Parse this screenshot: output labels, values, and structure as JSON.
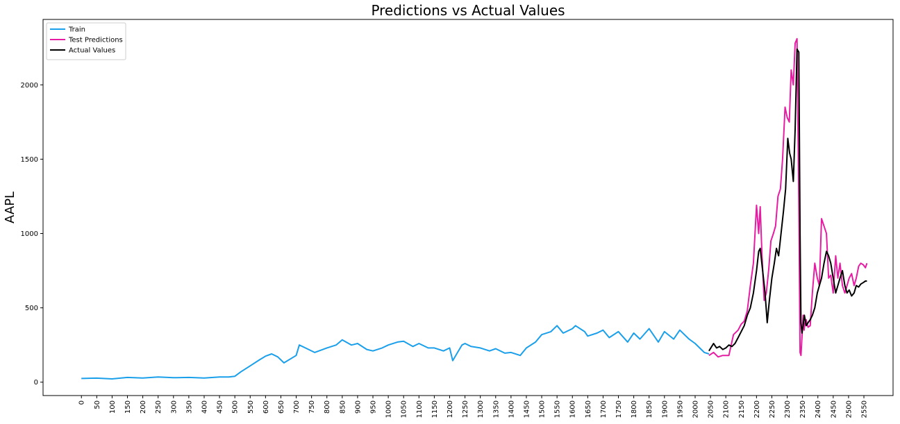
{
  "chart_data": {
    "type": "line",
    "title": "Predictions vs Actual Values",
    "xlabel": "",
    "ylabel": "AAPL",
    "xlim": [
      -125,
      2645
    ],
    "ylim": [
      -90,
      2440
    ],
    "x_ticks": [
      0,
      50,
      100,
      150,
      200,
      250,
      300,
      350,
      400,
      450,
      500,
      550,
      600,
      650,
      700,
      750,
      800,
      850,
      900,
      950,
      1000,
      1050,
      1100,
      1150,
      1200,
      1250,
      1300,
      1350,
      1400,
      1450,
      1500,
      1550,
      1600,
      1650,
      1700,
      1750,
      1800,
      1850,
      1900,
      1950,
      2000,
      2050,
      2100,
      2150,
      2200,
      2250,
      2300,
      2350,
      2400,
      2450,
      2500,
      2550
    ],
    "x_tick_labels": [
      "0",
      "50",
      "100",
      "150",
      "200",
      "250",
      "300",
      "350",
      "400",
      "450",
      "500",
      "550",
      "600",
      "650",
      "700",
      "750",
      "800",
      "850",
      "900",
      "950",
      "1000",
      "1050",
      "1100",
      "1150",
      "1200",
      "1250",
      "1300",
      "1350",
      "1400",
      "1450",
      "1500",
      "1550",
      "1600",
      "1650",
      "1700",
      "1750",
      "1800",
      "1850",
      "1900",
      "1950",
      "2000",
      "2050",
      "2100",
      "2150",
      "2200",
      "2250",
      "2300",
      "2350",
      "2400",
      "2450",
      "2500",
      "2550"
    ],
    "y_ticks": [
      0,
      500,
      1000,
      1500,
      2000
    ],
    "y_tick_labels": [
      "0",
      "500",
      "1000",
      "1500",
      "2000"
    ],
    "grid": false,
    "legend": {
      "placement": "top-left"
    },
    "series": [
      {
        "name": "Train",
        "color": "#1a9fea",
        "x": [
          0,
          50,
          100,
          150,
          200,
          250,
          300,
          350,
          400,
          450,
          480,
          500,
          520,
          550,
          580,
          600,
          620,
          640,
          660,
          700,
          710,
          730,
          760,
          800,
          830,
          850,
          880,
          900,
          930,
          950,
          980,
          1000,
          1030,
          1050,
          1080,
          1100,
          1130,
          1150,
          1180,
          1200,
          1210,
          1240,
          1250,
          1270,
          1300,
          1330,
          1350,
          1380,
          1400,
          1430,
          1450,
          1480,
          1500,
          1530,
          1550,
          1570,
          1600,
          1610,
          1640,
          1650,
          1680,
          1700,
          1720,
          1750,
          1780,
          1800,
          1820,
          1850,
          1880,
          1900,
          1930,
          1950,
          1980,
          2000,
          2030,
          2045
        ],
        "y": [
          25,
          27,
          22,
          32,
          28,
          35,
          30,
          32,
          28,
          35,
          35,
          40,
          70,
          110,
          150,
          175,
          190,
          170,
          130,
          180,
          250,
          230,
          200,
          230,
          250,
          285,
          250,
          260,
          220,
          210,
          230,
          250,
          270,
          275,
          240,
          260,
          230,
          230,
          210,
          230,
          145,
          250,
          260,
          240,
          230,
          210,
          225,
          195,
          200,
          180,
          230,
          270,
          320,
          340,
          380,
          330,
          360,
          380,
          340,
          310,
          330,
          350,
          300,
          340,
          270,
          330,
          290,
          360,
          270,
          340,
          290,
          350,
          290,
          260,
          200,
          190
        ]
      },
      {
        "name": "Test Predictions",
        "color": "#e61ca2",
        "x": [
          2045,
          2060,
          2075,
          2090,
          2110,
          2125,
          2140,
          2150,
          2160,
          2170,
          2180,
          2190,
          2200,
          2207,
          2212,
          2218,
          2225,
          2232,
          2240,
          2247,
          2255,
          2262,
          2270,
          2278,
          2285,
          2293,
          2300,
          2307,
          2313,
          2320,
          2326,
          2332,
          2338,
          2342,
          2345,
          2348,
          2352,
          2355,
          2358,
          2362,
          2368,
          2375,
          2382,
          2390,
          2398,
          2405,
          2412,
          2420,
          2428,
          2435,
          2442,
          2450,
          2458,
          2465,
          2472,
          2480,
          2488,
          2495,
          2502,
          2510,
          2518,
          2525,
          2533,
          2540,
          2548,
          2555,
          2560
        ],
        "y": [
          180,
          200,
          170,
          180,
          180,
          320,
          350,
          390,
          410,
          480,
          650,
          800,
          1190,
          1000,
          1180,
          850,
          550,
          600,
          760,
          950,
          1000,
          1050,
          1250,
          1300,
          1500,
          1850,
          1780,
          1750,
          2100,
          2000,
          2280,
          2310,
          1200,
          200,
          180,
          300,
          450,
          350,
          400,
          420,
          370,
          380,
          600,
          800,
          700,
          650,
          1100,
          1050,
          1000,
          700,
          720,
          600,
          850,
          700,
          800,
          650,
          600,
          650,
          700,
          730,
          650,
          700,
          780,
          800,
          790,
          770,
          800
        ]
      },
      {
        "name": "Actual Values",
        "color": "#000000",
        "x": [
          2045,
          2060,
          2070,
          2080,
          2090,
          2100,
          2110,
          2120,
          2130,
          2140,
          2150,
          2160,
          2170,
          2180,
          2190,
          2200,
          2207,
          2212,
          2220,
          2228,
          2235,
          2242,
          2250,
          2258,
          2265,
          2272,
          2280,
          2288,
          2295,
          2302,
          2308,
          2313,
          2320,
          2326,
          2332,
          2338,
          2342,
          2345,
          2348,
          2352,
          2356,
          2362,
          2368,
          2375,
          2382,
          2390,
          2398,
          2405,
          2412,
          2420,
          2428,
          2435,
          2442,
          2450,
          2458,
          2465,
          2472,
          2480,
          2488,
          2495,
          2502,
          2510,
          2518,
          2525,
          2533,
          2540,
          2548,
          2555,
          2560
        ],
        "y": [
          210,
          260,
          230,
          240,
          220,
          230,
          250,
          240,
          260,
          300,
          340,
          380,
          450,
          500,
          600,
          750,
          880,
          900,
          750,
          600,
          400,
          550,
          700,
          800,
          900,
          850,
          1000,
          1150,
          1300,
          1640,
          1540,
          1500,
          1350,
          1700,
          2240,
          2220,
          1000,
          400,
          330,
          380,
          450,
          380,
          400,
          420,
          450,
          500,
          600,
          650,
          700,
          800,
          880,
          850,
          800,
          700,
          600,
          650,
          700,
          750,
          650,
          600,
          620,
          580,
          600,
          650,
          640,
          660,
          670,
          680,
          680
        ]
      }
    ]
  }
}
